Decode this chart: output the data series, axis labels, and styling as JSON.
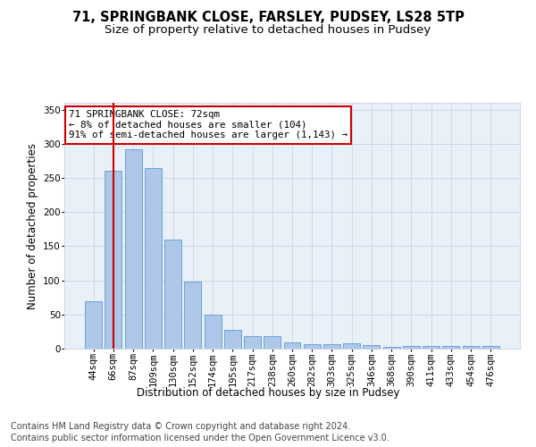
{
  "title1": "71, SPRINGBANK CLOSE, FARSLEY, PUDSEY, LS28 5TP",
  "title2": "Size of property relative to detached houses in Pudsey",
  "xlabel": "Distribution of detached houses by size in Pudsey",
  "ylabel": "Number of detached properties",
  "categories": [
    "44sqm",
    "66sqm",
    "87sqm",
    "109sqm",
    "130sqm",
    "152sqm",
    "174sqm",
    "195sqm",
    "217sqm",
    "238sqm",
    "260sqm",
    "282sqm",
    "303sqm",
    "325sqm",
    "346sqm",
    "368sqm",
    "390sqm",
    "411sqm",
    "433sqm",
    "454sqm",
    "476sqm"
  ],
  "values": [
    70,
    260,
    292,
    265,
    160,
    98,
    50,
    28,
    18,
    18,
    9,
    7,
    7,
    8,
    5,
    2,
    4,
    4,
    4,
    4,
    4
  ],
  "bar_color": "#aec6e8",
  "bar_edge_color": "#5b9bd5",
  "vline_x": 1,
  "vline_color": "#cc0000",
  "annotation_line1": "71 SPRINGBANK CLOSE: 72sqm",
  "annotation_line2": "← 8% of detached houses are smaller (104)",
  "annotation_line3": "91% of semi-detached houses are larger (1,143) →",
  "annotation_box_color": "#ffffff",
  "annotation_box_edge": "#cc0000",
  "ylim": [
    0,
    360
  ],
  "yticks": [
    0,
    50,
    100,
    150,
    200,
    250,
    300,
    350
  ],
  "grid_color": "#d0d8e8",
  "background_color": "#eaf0f8",
  "footer1": "Contains HM Land Registry data © Crown copyright and database right 2024.",
  "footer2": "Contains public sector information licensed under the Open Government Licence v3.0.",
  "title_fontsize": 10.5,
  "subtitle_fontsize": 9.5,
  "axis_fontsize": 8.5,
  "tick_fontsize": 7.5,
  "annotation_fontsize": 7.8,
  "footer_fontsize": 7
}
